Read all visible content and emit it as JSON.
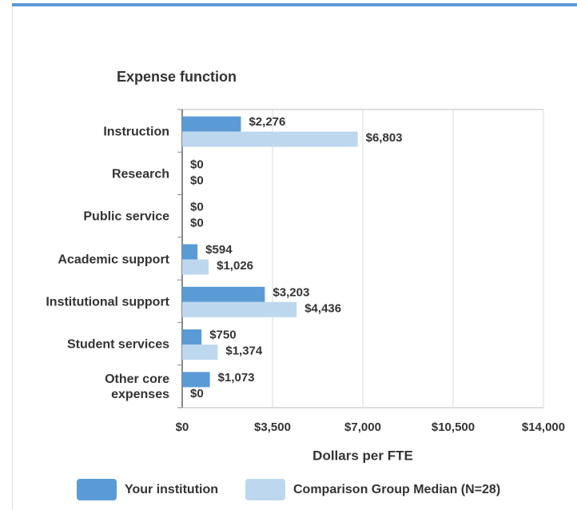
{
  "chart_data": {
    "type": "hbar",
    "title": "Expense function",
    "x_label": "Dollars per FTE",
    "categories": [
      "Instruction",
      "Research",
      "Public service",
      "Academic support",
      "Institutional support",
      "Student services",
      "Other core\nexpenses"
    ],
    "series": [
      {
        "name": "Your institution",
        "color": "#5b9bd5",
        "values": [
          2276,
          0,
          0,
          594,
          3203,
          750,
          1073
        ],
        "value_labels": [
          "$2,276",
          "$0",
          "$0",
          "$594",
          "$3,203",
          "$750",
          "$1,073"
        ]
      },
      {
        "name": "Comparison Group Median (N=28)",
        "color": "#bdd7ee",
        "values": [
          6803,
          0,
          0,
          1026,
          4436,
          1374,
          0
        ],
        "value_labels": [
          "$6,803",
          "$0",
          "$0",
          "$1,026",
          "$4,436",
          "$1,374",
          "$0"
        ]
      }
    ],
    "xlim": [
      0,
      14000
    ],
    "xticks": [
      {
        "value": 0,
        "label": "$0"
      },
      {
        "value": 3500,
        "label": "$3,500"
      },
      {
        "value": 7000,
        "label": "$7,000"
      },
      {
        "value": 10500,
        "label": "$10,500"
      },
      {
        "value": 14000,
        "label": "$14,000"
      }
    ],
    "grid": true,
    "legend": "bottom"
  }
}
